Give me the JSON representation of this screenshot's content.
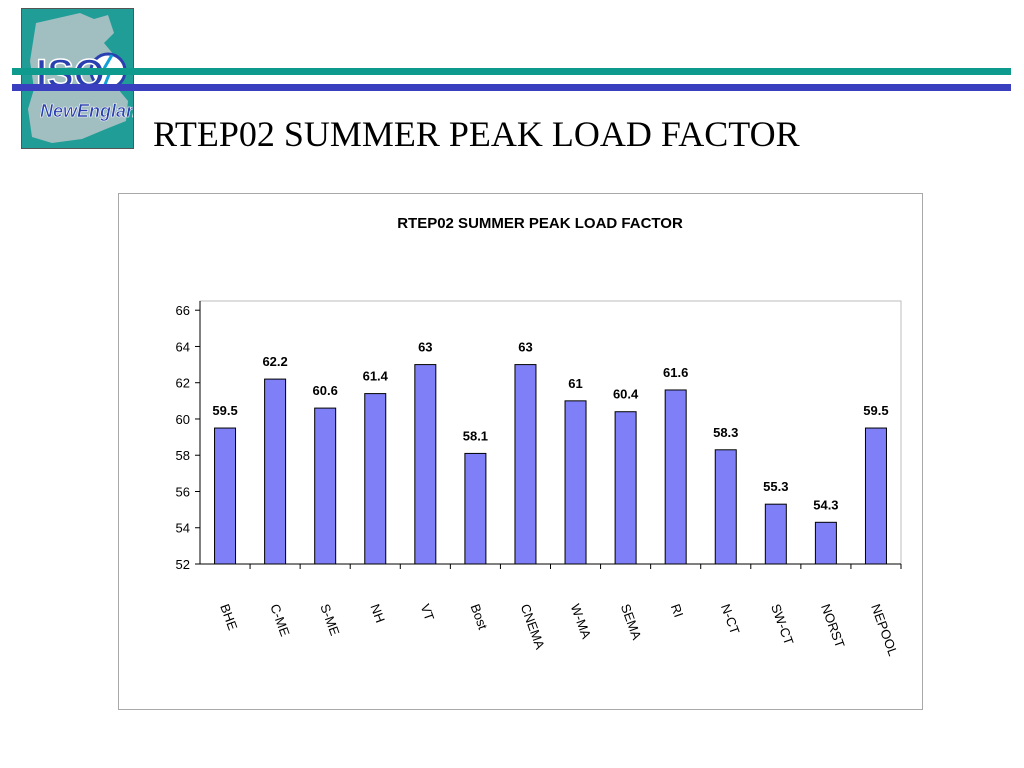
{
  "slide": {
    "title": "RTEP02 SUMMER PEAK LOAD FACTOR",
    "logo": {
      "line1": "ISO",
      "line2": "NewEngland"
    }
  },
  "colors": {
    "teal": "#0f9a8e",
    "blue": "#3a3fc0",
    "bar": "#7f7ff7",
    "bar_edge": "#000000"
  },
  "chart_data": {
    "type": "bar",
    "title": "RTEP02 SUMMER PEAK LOAD FACTOR",
    "xlabel": "",
    "ylabel": "",
    "categories": [
      "BHE",
      "C-ME",
      "S-ME",
      "NH",
      "VT",
      "Bost",
      "CNEMA",
      "W-MA",
      "SEMA",
      "RI",
      "N-CT",
      "SW-CT",
      "NORST",
      "NEPOOL"
    ],
    "values": [
      59.5,
      62.2,
      60.6,
      61.4,
      63,
      58.1,
      63,
      61,
      60.4,
      61.6,
      58.3,
      55.3,
      54.3,
      59.5
    ],
    "data_labels": [
      "59.5",
      "62.2",
      "60.6",
      "61.4",
      "63",
      "58.1",
      "63",
      "61",
      "60.4",
      "61.6",
      "58.3",
      "55.3",
      "54.3",
      "59.5"
    ],
    "ylim": [
      52,
      66
    ],
    "y_ticks": [
      "52",
      "54",
      "56",
      "58",
      "60",
      "62",
      "64",
      "66"
    ],
    "grid": false,
    "legend": "none"
  }
}
